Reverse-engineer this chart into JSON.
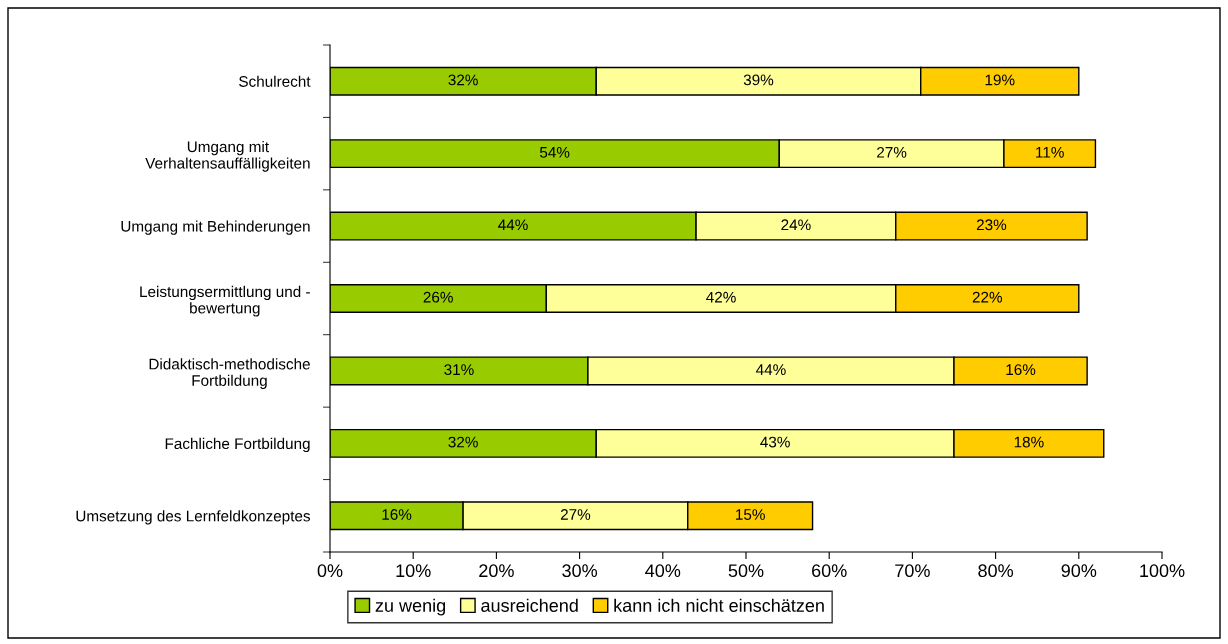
{
  "chart_data": {
    "type": "bar",
    "orientation": "horizontal",
    "stacked": true,
    "categories": [
      "Schulrecht",
      "Umgang mit\nVerhaltensauffälligkeiten",
      "Umgang mit Behinderungen",
      "Leistungsermittlung und -\nbewertung",
      "Didaktisch-methodische\nFortbildung",
      "Fachliche Fortbildung",
      "Umsetzung des Lernfeldkonzeptes"
    ],
    "series": [
      {
        "name": "zu wenig",
        "color": "#99cc00",
        "values": [
          32,
          54,
          44,
          26,
          31,
          32,
          16
        ],
        "value_labels": [
          "32%",
          "54%",
          "44%",
          "26%",
          "31%",
          "32%",
          "16%"
        ]
      },
      {
        "name": "ausreichend",
        "color": "#ffff99",
        "values": [
          39,
          27,
          24,
          42,
          44,
          43,
          27
        ],
        "value_labels": [
          "39%",
          "27%",
          "24%",
          "42%",
          "44%",
          "43%",
          "27%"
        ]
      },
      {
        "name": "kann ich nicht einschätzen",
        "color": "#ffcc00",
        "values": [
          19,
          11,
          23,
          22,
          16,
          18,
          15
        ],
        "value_labels": [
          "19%",
          "11%",
          "23%",
          "22%",
          "16%",
          "18%",
          "15%"
        ]
      }
    ],
    "xlim": [
      0,
      100
    ],
    "xticks": [
      {
        "value": 0,
        "label": "0%"
      },
      {
        "value": 10,
        "label": "10%"
      },
      {
        "value": 20,
        "label": "20%"
      },
      {
        "value": 30,
        "label": "30%"
      },
      {
        "value": 40,
        "label": "40%"
      },
      {
        "value": 50,
        "label": "50%"
      },
      {
        "value": 60,
        "label": "60%"
      },
      {
        "value": 70,
        "label": "70%"
      },
      {
        "value": 80,
        "label": "80%"
      },
      {
        "value": 90,
        "label": "90%"
      },
      {
        "value": 100,
        "label": "100%"
      }
    ],
    "grid": false,
    "legend": "bottom"
  }
}
